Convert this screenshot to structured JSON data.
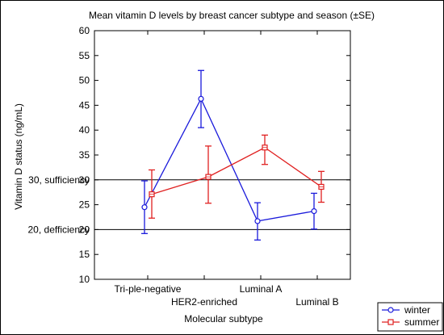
{
  "chart_data": {
    "type": "line",
    "title": "Mean vitamin D levels by breast cancer subtype and season (±SE)",
    "xlabel": "Molecular subtype",
    "ylabel": "Vitamin D status (ng/mL)",
    "categories": [
      "Tri-ple-negative",
      "HER2-enriched",
      "Luminal A",
      "Luminal B"
    ],
    "ylim": [
      10,
      60
    ],
    "yticks": [
      {
        "value": 10,
        "label": "10"
      },
      {
        "value": 15,
        "label": "15"
      },
      {
        "value": 20,
        "label": "20"
      },
      {
        "value": 25,
        "label": "25"
      },
      {
        "value": 30,
        "label": "30"
      },
      {
        "value": 35,
        "label": "35"
      },
      {
        "value": 40,
        "label": "40"
      },
      {
        "value": 45,
        "label": "45"
      },
      {
        "value": 50,
        "label": "50"
      },
      {
        "value": 55,
        "label": "55"
      },
      {
        "value": 60,
        "label": "60"
      }
    ],
    "reference_lines": [
      {
        "value": 20,
        "label": "20, defficiency"
      },
      {
        "value": 30,
        "label": "30, sufficiency"
      }
    ],
    "series": [
      {
        "name": "winter",
        "color": "#1a1adb",
        "marker": "circle",
        "values": [
          24.5,
          46.3,
          21.7,
          23.7
        ],
        "error_low": [
          19.2,
          40.5,
          17.9,
          20.1
        ],
        "error_high": [
          29.8,
          52.0,
          25.4,
          27.3
        ]
      },
      {
        "name": "summer",
        "color": "#e02020",
        "marker": "square",
        "values": [
          27.1,
          30.6,
          36.5,
          28.6
        ],
        "error_low": [
          22.3,
          25.3,
          33.1,
          25.5
        ],
        "error_high": [
          32.0,
          36.8,
          39.0,
          31.7
        ]
      }
    ],
    "grid": false,
    "legend_position": "bottom-right"
  }
}
